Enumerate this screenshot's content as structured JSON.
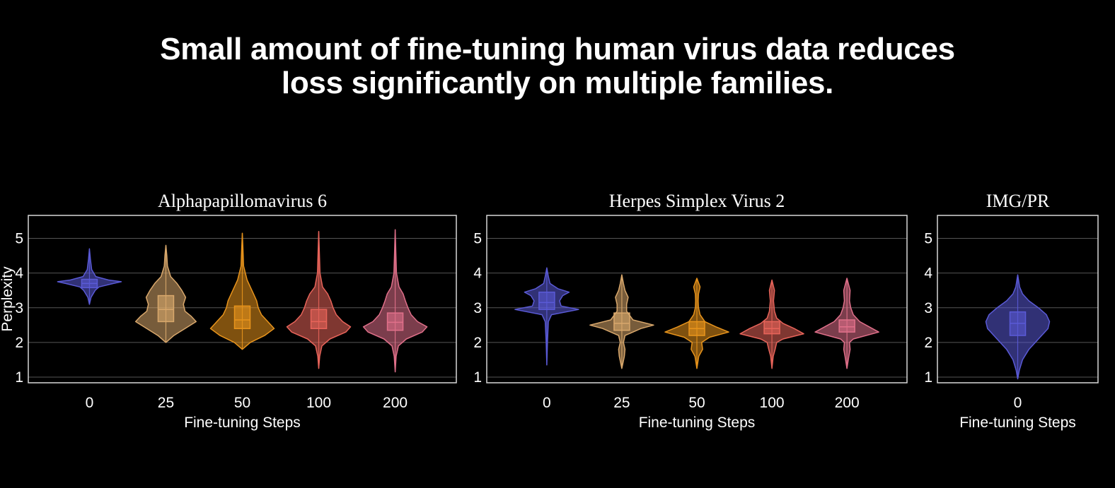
{
  "slide": {
    "title_line1": "Small amount of fine-tuning human virus data reduces",
    "title_line2": "loss significantly on multiple families."
  },
  "colors": {
    "background": "#000000",
    "frame": "#d8d8d8",
    "grid": "#555555",
    "step_0": "#5a5ad6",
    "step_25": "#d9a86c",
    "step_50": "#e8941c",
    "step_100": "#e8645a",
    "step_200": "#e0708a"
  },
  "chart_data": [
    {
      "type": "violin",
      "title": "Alphapapillomavirus 6",
      "xlabel": "Fine-tuning Steps",
      "ylabel": "Perplexity",
      "ylim": [
        1,
        5.5
      ],
      "yticks": [
        1,
        2,
        3,
        4,
        5
      ],
      "grid": true,
      "categories": [
        "0",
        "25",
        "50",
        "100",
        "200"
      ],
      "series": [
        {
          "name": "0",
          "color": "step_0",
          "min": 3.1,
          "max": 4.7,
          "q1": 3.58,
          "median": 3.7,
          "q3": 3.82,
          "profile": [
            [
              3.1,
              0.0
            ],
            [
              3.3,
              0.05
            ],
            [
              3.5,
              0.18
            ],
            [
              3.6,
              0.3
            ],
            [
              3.7,
              0.75
            ],
            [
              3.75,
              1.0
            ],
            [
              3.8,
              0.6
            ],
            [
              3.9,
              0.2
            ],
            [
              4.1,
              0.07
            ],
            [
              4.4,
              0.03
            ],
            [
              4.7,
              0.0
            ]
          ]
        },
        {
          "name": "25",
          "color": "step_25",
          "min": 2.0,
          "max": 4.8,
          "q1": 2.6,
          "median": 2.95,
          "q3": 3.35,
          "profile": [
            [
              2.0,
              0.0
            ],
            [
              2.2,
              0.25
            ],
            [
              2.4,
              0.6
            ],
            [
              2.6,
              0.95
            ],
            [
              2.75,
              0.8
            ],
            [
              2.9,
              0.6
            ],
            [
              3.1,
              0.55
            ],
            [
              3.3,
              0.62
            ],
            [
              3.5,
              0.5
            ],
            [
              3.7,
              0.35
            ],
            [
              3.9,
              0.15
            ],
            [
              4.2,
              0.05
            ],
            [
              4.5,
              0.03
            ],
            [
              4.8,
              0.0
            ]
          ]
        },
        {
          "name": "50",
          "color": "step_50",
          "min": 1.8,
          "max": 5.15,
          "q1": 2.4,
          "median": 2.65,
          "q3": 3.05,
          "profile": [
            [
              1.8,
              0.0
            ],
            [
              2.0,
              0.25
            ],
            [
              2.2,
              0.7
            ],
            [
              2.4,
              1.0
            ],
            [
              2.6,
              0.8
            ],
            [
              2.8,
              0.6
            ],
            [
              3.0,
              0.5
            ],
            [
              3.2,
              0.45
            ],
            [
              3.4,
              0.35
            ],
            [
              3.6,
              0.25
            ],
            [
              3.8,
              0.15
            ],
            [
              4.2,
              0.04
            ],
            [
              4.7,
              0.02
            ],
            [
              5.15,
              0.0
            ]
          ]
        },
        {
          "name": "100",
          "color": "step_100",
          "min": 1.25,
          "max": 5.2,
          "q1": 2.4,
          "median": 2.6,
          "q3": 2.95,
          "profile": [
            [
              1.25,
              0.0
            ],
            [
              1.6,
              0.03
            ],
            [
              1.9,
              0.1
            ],
            [
              2.1,
              0.35
            ],
            [
              2.3,
              0.85
            ],
            [
              2.45,
              1.0
            ],
            [
              2.6,
              0.75
            ],
            [
              2.8,
              0.55
            ],
            [
              3.0,
              0.45
            ],
            [
              3.2,
              0.38
            ],
            [
              3.4,
              0.28
            ],
            [
              3.6,
              0.12
            ],
            [
              4.0,
              0.04
            ],
            [
              4.6,
              0.02
            ],
            [
              5.2,
              0.0
            ]
          ]
        },
        {
          "name": "200",
          "color": "step_200",
          "min": 1.15,
          "max": 5.25,
          "q1": 2.35,
          "median": 2.58,
          "q3": 2.85,
          "profile": [
            [
              1.15,
              0.0
            ],
            [
              1.6,
              0.03
            ],
            [
              1.9,
              0.1
            ],
            [
              2.1,
              0.35
            ],
            [
              2.3,
              0.85
            ],
            [
              2.45,
              1.0
            ],
            [
              2.6,
              0.7
            ],
            [
              2.8,
              0.5
            ],
            [
              3.0,
              0.4
            ],
            [
              3.2,
              0.32
            ],
            [
              3.4,
              0.25
            ],
            [
              3.6,
              0.12
            ],
            [
              4.0,
              0.04
            ],
            [
              4.6,
              0.02
            ],
            [
              5.25,
              0.0
            ]
          ]
        }
      ]
    },
    {
      "type": "violin",
      "title": "Herpes Simplex Virus 2",
      "xlabel": "Fine-tuning Steps",
      "ylabel": "",
      "ylim": [
        1,
        5.5
      ],
      "yticks": [
        1,
        2,
        3,
        4,
        5
      ],
      "grid": true,
      "categories": [
        "0",
        "25",
        "50",
        "100",
        "200"
      ],
      "series": [
        {
          "name": "0",
          "color": "step_0",
          "min": 1.35,
          "max": 4.15,
          "q1": 2.95,
          "median": 3.15,
          "q3": 3.45,
          "profile": [
            [
              1.35,
              0.0
            ],
            [
              2.0,
              0.02
            ],
            [
              2.6,
              0.05
            ],
            [
              2.8,
              0.15
            ],
            [
              2.95,
              1.0
            ],
            [
              3.05,
              0.45
            ],
            [
              3.2,
              0.4
            ],
            [
              3.35,
              0.5
            ],
            [
              3.45,
              0.7
            ],
            [
              3.55,
              0.35
            ],
            [
              3.7,
              0.1
            ],
            [
              3.9,
              0.05
            ],
            [
              4.15,
              0.0
            ]
          ]
        },
        {
          "name": "25",
          "color": "step_25",
          "min": 1.25,
          "max": 3.95,
          "q1": 2.35,
          "median": 2.55,
          "q3": 2.85,
          "profile": [
            [
              1.25,
              0.0
            ],
            [
              1.6,
              0.08
            ],
            [
              1.8,
              0.1
            ],
            [
              2.0,
              0.05
            ],
            [
              2.2,
              0.1
            ],
            [
              2.4,
              0.6
            ],
            [
              2.5,
              1.0
            ],
            [
              2.65,
              0.35
            ],
            [
              2.9,
              0.15
            ],
            [
              3.1,
              0.15
            ],
            [
              3.3,
              0.2
            ],
            [
              3.5,
              0.1
            ],
            [
              3.7,
              0.05
            ],
            [
              3.95,
              0.0
            ]
          ]
        },
        {
          "name": "50",
          "color": "step_50",
          "min": 1.25,
          "max": 3.85,
          "q1": 2.2,
          "median": 2.4,
          "q3": 2.6,
          "profile": [
            [
              1.25,
              0.0
            ],
            [
              1.6,
              0.06
            ],
            [
              1.8,
              0.18
            ],
            [
              2.0,
              0.15
            ],
            [
              2.15,
              0.4
            ],
            [
              2.3,
              1.0
            ],
            [
              2.45,
              0.6
            ],
            [
              2.6,
              0.25
            ],
            [
              2.8,
              0.1
            ],
            [
              3.0,
              0.05
            ],
            [
              3.2,
              0.04
            ],
            [
              3.4,
              0.05
            ],
            [
              3.6,
              0.1
            ],
            [
              3.85,
              0.0
            ]
          ]
        },
        {
          "name": "100",
          "color": "step_100",
          "min": 1.25,
          "max": 3.8,
          "q1": 2.25,
          "median": 2.4,
          "q3": 2.6,
          "profile": [
            [
              1.25,
              0.0
            ],
            [
              1.6,
              0.04
            ],
            [
              1.8,
              0.1
            ],
            [
              2.0,
              0.15
            ],
            [
              2.1,
              0.35
            ],
            [
              2.25,
              1.0
            ],
            [
              2.4,
              0.7
            ],
            [
              2.55,
              0.35
            ],
            [
              2.7,
              0.15
            ],
            [
              2.9,
              0.08
            ],
            [
              3.2,
              0.05
            ],
            [
              3.5,
              0.08
            ],
            [
              3.8,
              0.0
            ]
          ]
        },
        {
          "name": "200",
          "color": "step_200",
          "min": 1.25,
          "max": 3.85,
          "q1": 2.3,
          "median": 2.45,
          "q3": 2.65,
          "profile": [
            [
              1.25,
              0.0
            ],
            [
              1.6,
              0.06
            ],
            [
              1.8,
              0.1
            ],
            [
              2.0,
              0.08
            ],
            [
              2.1,
              0.2
            ],
            [
              2.3,
              1.0
            ],
            [
              2.45,
              0.7
            ],
            [
              2.6,
              0.4
            ],
            [
              2.8,
              0.2
            ],
            [
              3.0,
              0.12
            ],
            [
              3.2,
              0.08
            ],
            [
              3.5,
              0.1
            ],
            [
              3.85,
              0.0
            ]
          ]
        }
      ]
    },
    {
      "type": "violin",
      "title": "IMG/PR",
      "xlabel": "Fine-tuning Steps",
      "ylabel": "",
      "ylim": [
        1,
        5.5
      ],
      "yticks": [
        1,
        2,
        3,
        4,
        5
      ],
      "grid": true,
      "categories": [
        "0"
      ],
      "series": [
        {
          "name": "0",
          "color": "step_0",
          "min": 0.95,
          "max": 3.95,
          "q1": 2.2,
          "median": 2.55,
          "q3": 2.88,
          "profile": [
            [
              0.95,
              0.0
            ],
            [
              1.2,
              0.05
            ],
            [
              1.5,
              0.15
            ],
            [
              1.8,
              0.35
            ],
            [
              2.1,
              0.65
            ],
            [
              2.4,
              0.95
            ],
            [
              2.6,
              1.0
            ],
            [
              2.8,
              0.9
            ],
            [
              3.0,
              0.65
            ],
            [
              3.2,
              0.35
            ],
            [
              3.4,
              0.15
            ],
            [
              3.6,
              0.06
            ],
            [
              3.95,
              0.0
            ]
          ]
        }
      ]
    }
  ]
}
